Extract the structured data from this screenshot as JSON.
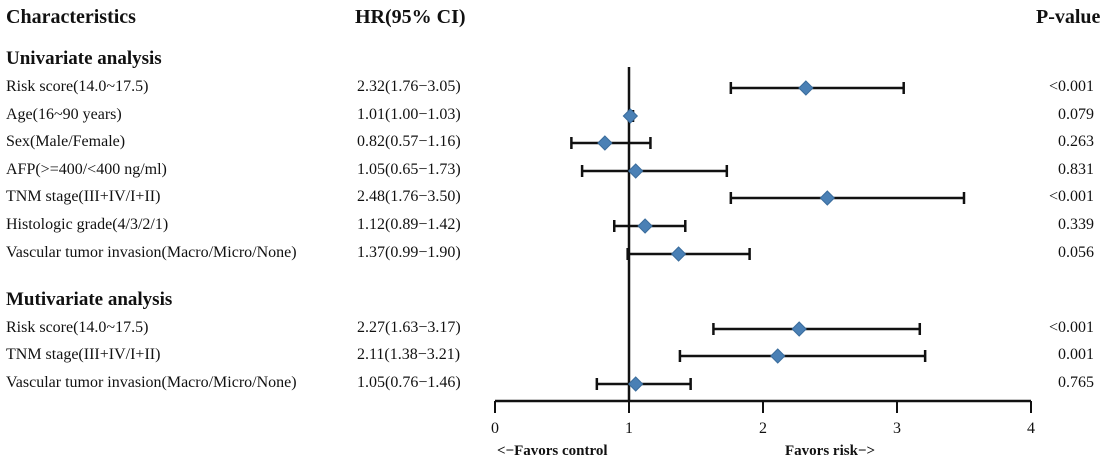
{
  "headers": {
    "characteristics": "Characteristics",
    "hr": "HR(95% CI)",
    "pvalue": "P-value"
  },
  "chart_data": {
    "type": "forest",
    "xlim": [
      0,
      4
    ],
    "xticks": [
      0,
      1,
      2,
      3,
      4
    ],
    "reference_line": 1,
    "xlabel_left": "<−Favors control",
    "xlabel_right": "Favors risk−>",
    "marker_color": "#4a80b5",
    "sections": [
      {
        "title": "Univariate analysis",
        "rows": [
          {
            "label": "Risk score(14.0~17.5)",
            "hr_text": "2.32(1.76−3.05)",
            "hr": 2.32,
            "lo": 1.76,
            "hi": 3.05,
            "p": "<0.001"
          },
          {
            "label": "Age(16~90 years)",
            "hr_text": "1.01(1.00−1.03)",
            "hr": 1.01,
            "lo": 1.0,
            "hi": 1.03,
            "p": "0.079"
          },
          {
            "label": "Sex(Male/Female)",
            "hr_text": "0.82(0.57−1.16)",
            "hr": 0.82,
            "lo": 0.57,
            "hi": 1.16,
            "p": "0.263"
          },
          {
            "label": "AFP(>=400/<400 ng/ml)",
            "hr_text": "1.05(0.65−1.73)",
            "hr": 1.05,
            "lo": 0.65,
            "hi": 1.73,
            "p": "0.831"
          },
          {
            "label": "TNM stage(III+IV/I+II)",
            "hr_text": "2.48(1.76−3.50)",
            "hr": 2.48,
            "lo": 1.76,
            "hi": 3.5,
            "p": "<0.001"
          },
          {
            "label": "Histologic grade(4/3/2/1)",
            "hr_text": "1.12(0.89−1.42)",
            "hr": 1.12,
            "lo": 0.89,
            "hi": 1.42,
            "p": "0.339"
          },
          {
            "label": "Vascular tumor invasion(Macro/Micro/None)",
            "hr_text": "1.37(0.99−1.90)",
            "hr": 1.37,
            "lo": 0.99,
            "hi": 1.9,
            "p": "0.056"
          }
        ]
      },
      {
        "title": "Mutivariate analysis",
        "rows": [
          {
            "label": "Risk score(14.0~17.5)",
            "hr_text": "2.27(1.63−3.17)",
            "hr": 2.27,
            "lo": 1.63,
            "hi": 3.17,
            "p": "<0.001"
          },
          {
            "label": "TNM stage(III+IV/I+II)",
            "hr_text": "2.11(1.38−3.21)",
            "hr": 2.11,
            "lo": 1.38,
            "hi": 3.21,
            "p": "0.001"
          },
          {
            "label": "Vascular tumor invasion(Macro/Micro/None)",
            "hr_text": "1.05(0.76−1.46)",
            "hr": 1.05,
            "lo": 0.76,
            "hi": 1.46,
            "p": "0.765"
          }
        ]
      }
    ]
  }
}
